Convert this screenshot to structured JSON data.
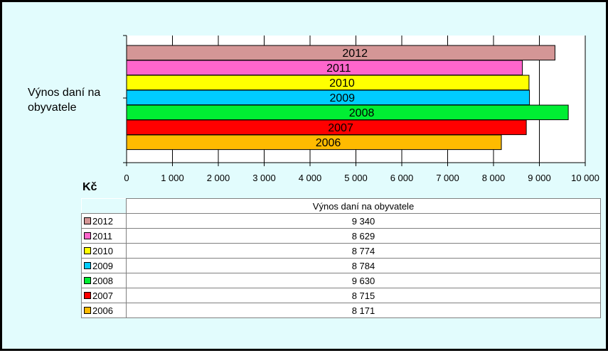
{
  "chart_data": {
    "type": "bar",
    "orientation": "horizontal",
    "category_label": "Výnos daní na obyvatele",
    "unit": "Kč",
    "xlim": [
      0,
      10000
    ],
    "x_ticks": [
      "0",
      "1 000",
      "2 000",
      "3 000",
      "4 000",
      "5 000",
      "6 000",
      "7 000",
      "8 000",
      "9 000",
      "10 000"
    ],
    "grid": "vertical",
    "series": [
      {
        "name": "2012",
        "value": 9340,
        "value_label": "9 340",
        "color": "#d49696"
      },
      {
        "name": "2011",
        "value": 8629,
        "value_label": "8 629",
        "color": "#ff66cc"
      },
      {
        "name": "2010",
        "value": 8774,
        "value_label": "8 774",
        "color": "#ffff00"
      },
      {
        "name": "2009",
        "value": 8784,
        "value_label": "8 784",
        "color": "#00ccff"
      },
      {
        "name": "2008",
        "value": 9630,
        "value_label": "9 630",
        "color": "#00ee33"
      },
      {
        "name": "2007",
        "value": 8715,
        "value_label": "8 715",
        "color": "#ff0000"
      },
      {
        "name": "2006",
        "value": 8171,
        "value_label": "8 171",
        "color": "#ffbb00"
      }
    ],
    "table": {
      "header": "Výnos daní na obyvatele"
    }
  }
}
